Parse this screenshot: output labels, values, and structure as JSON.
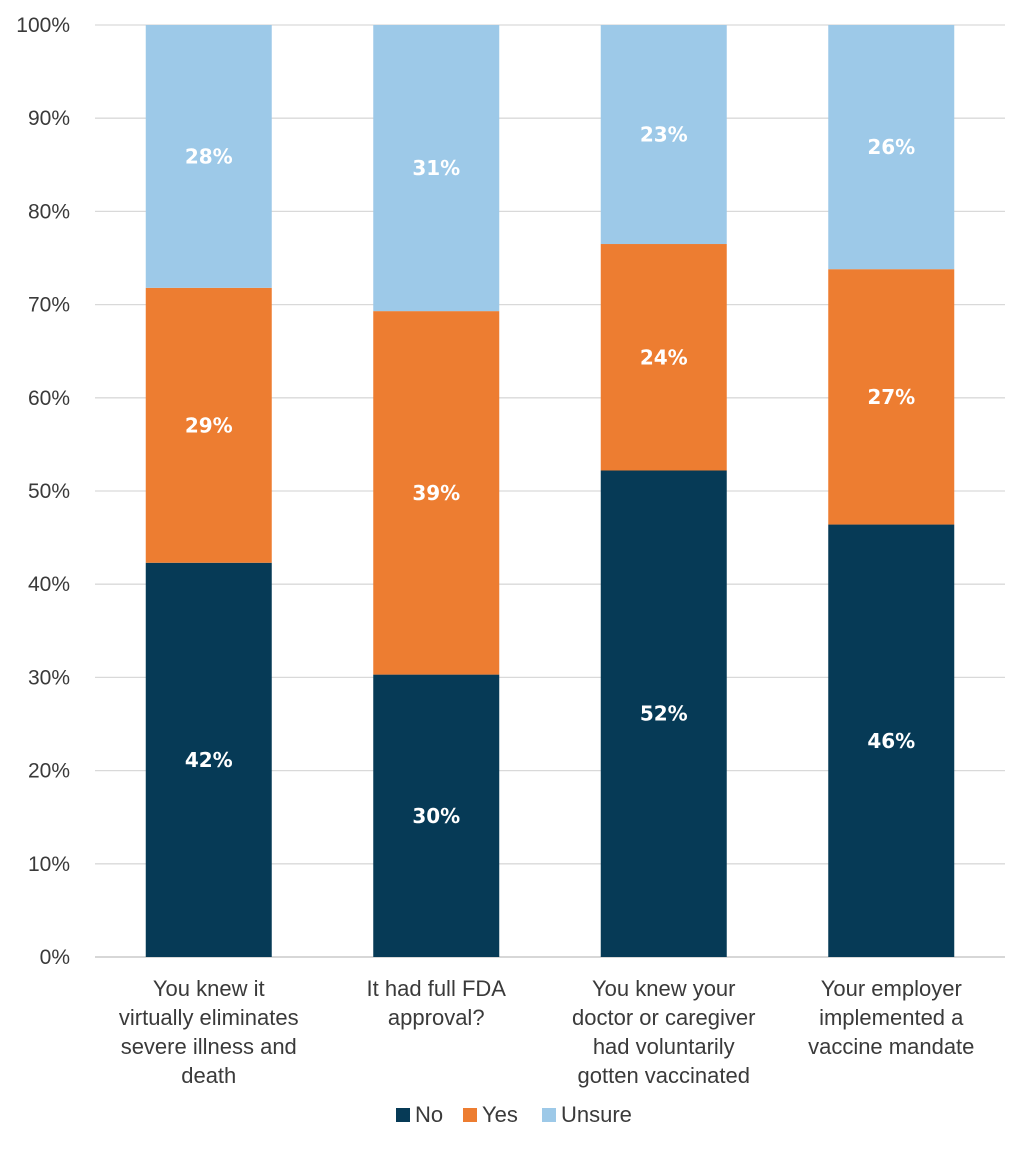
{
  "chart_data": {
    "type": "bar",
    "stacked": true,
    "title": "",
    "xlabel": "",
    "ylabel": "",
    "ylim": [
      0,
      100
    ],
    "yticks": [
      "0%",
      "10%",
      "20%",
      "30%",
      "40%",
      "50%",
      "60%",
      "70%",
      "80%",
      "90%",
      "100%"
    ],
    "categories": [
      [
        "You knew it",
        "virtually eliminates",
        "severe illness and",
        "death"
      ],
      [
        "It had full FDA",
        "approval?"
      ],
      [
        "You knew your",
        "doctor or caregiver",
        "had voluntarily",
        "gotten vaccinated"
      ],
      [
        "Your employer",
        "implemented a",
        "vaccine mandate"
      ]
    ],
    "series": [
      {
        "name": "No",
        "color": "#063a56",
        "values": [
          42.3,
          30.3,
          52.2,
          46.4
        ],
        "labels": [
          "42%",
          "30%",
          "52%",
          "46%"
        ]
      },
      {
        "name": "Yes",
        "color": "#ed7d31",
        "values": [
          29.5,
          39.0,
          24.3,
          27.4
        ],
        "labels": [
          "29%",
          "39%",
          "24%",
          "27%"
        ]
      },
      {
        "name": "Unsure",
        "color": "#9dc9e8",
        "values": [
          28.2,
          30.7,
          23.5,
          26.2
        ],
        "labels": [
          "28%",
          "31%",
          "23%",
          "26%"
        ]
      }
    ],
    "grid": true,
    "legend": "bottom"
  }
}
